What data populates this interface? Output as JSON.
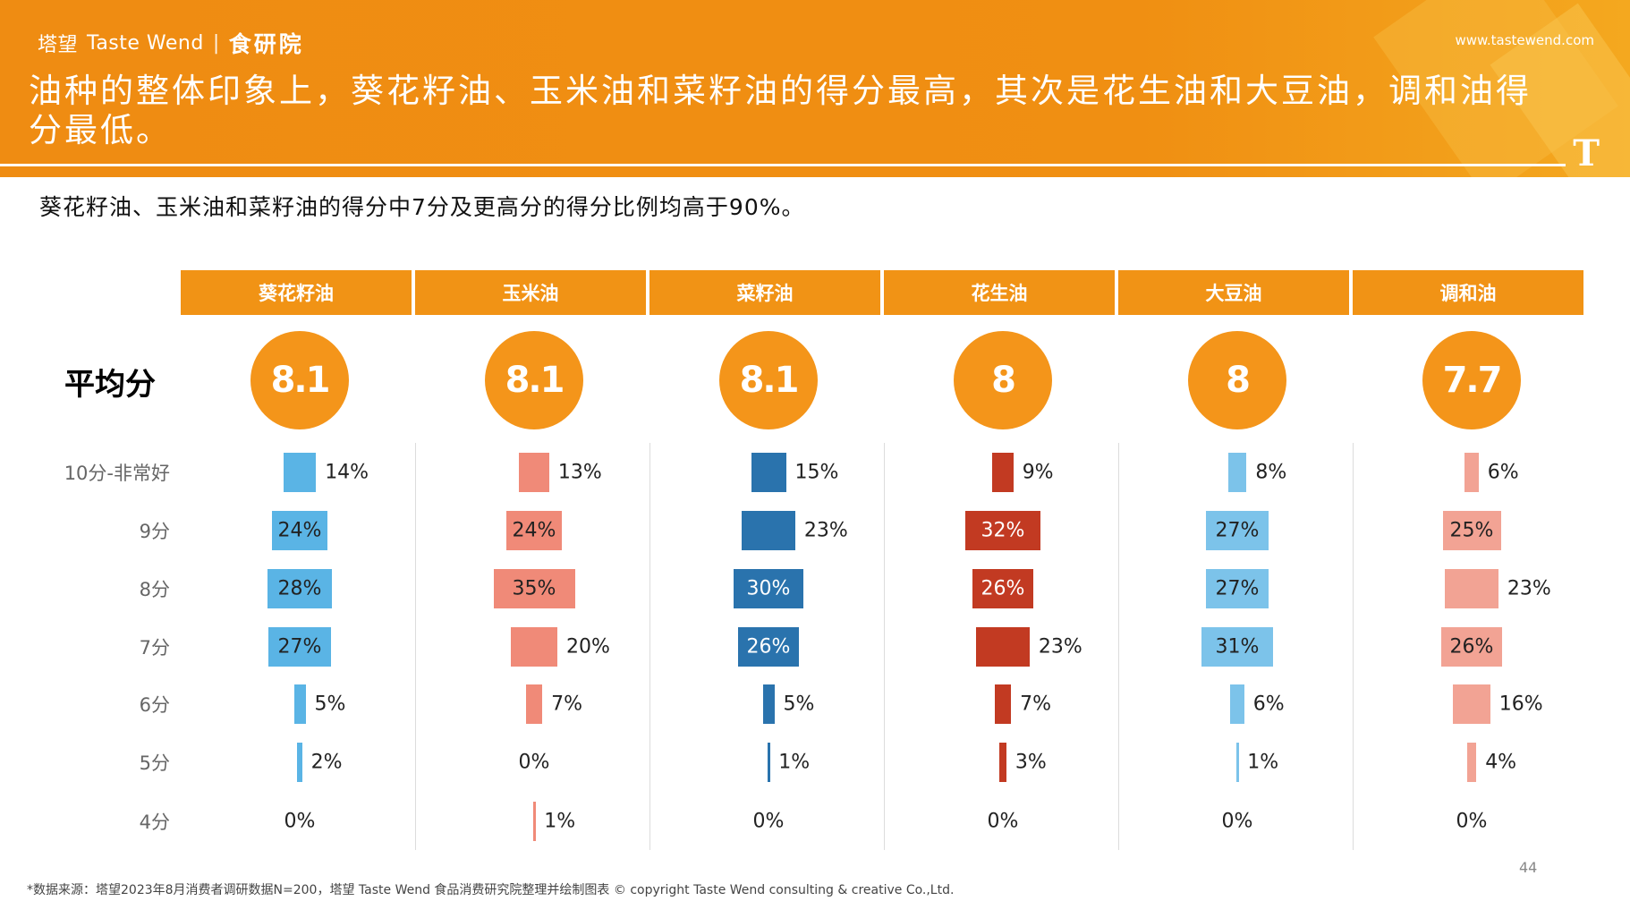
{
  "brand": {
    "logo_cn": "塔望",
    "logo_en": "Taste Wend",
    "divider": "|",
    "sub": "食研院",
    "url": "www.tastewend.com",
    "corner_mark": "T"
  },
  "headline": "油种的整体印象上，葵花籽油、玉米油和菜籽油的得分最高，其次是花生油和大豆油，调和油得分最低。",
  "subheadline": "葵花籽油、玉米油和菜籽油的得分中7分及更高分的得分比例均高于90%。",
  "avg_label": "平均分",
  "footnote": "*数据来源：塔望2023年8月消费者调研数据N=200，塔望 Taste Wend 食品消费研究院整理并绘制图表 © copyright Taste Wend consulting & creative Co.,Ltd.",
  "page_number": "44",
  "chart_data": {
    "type": "bar",
    "categories": [
      "10分-非常好",
      "9分",
      "8分",
      "7分",
      "6分",
      "5分",
      "4分"
    ],
    "unit": "%",
    "series": [
      {
        "name": "葵花籽油",
        "average": "8.1",
        "color": "#5ab4e5",
        "values": [
          14,
          24,
          28,
          27,
          5,
          2,
          0
        ]
      },
      {
        "name": "玉米油",
        "average": "8.1",
        "color": "#f08a78",
        "values": [
          13,
          24,
          35,
          20,
          7,
          0,
          1
        ]
      },
      {
        "name": "菜籽油",
        "average": "8.1",
        "color": "#2a73ad",
        "values": [
          15,
          23,
          30,
          26,
          5,
          1,
          0
        ]
      },
      {
        "name": "花生油",
        "average": "8",
        "color": "#c23a22",
        "values": [
          9,
          32,
          26,
          23,
          7,
          3,
          0
        ]
      },
      {
        "name": "大豆油",
        "average": "8",
        "color": "#7cc3ea",
        "values": [
          8,
          27,
          27,
          31,
          6,
          1,
          0
        ]
      },
      {
        "name": "调和油",
        "average": "7.7",
        "color": "#f2a394",
        "values": [
          6,
          25,
          23,
          26,
          16,
          4,
          0
        ]
      }
    ]
  }
}
